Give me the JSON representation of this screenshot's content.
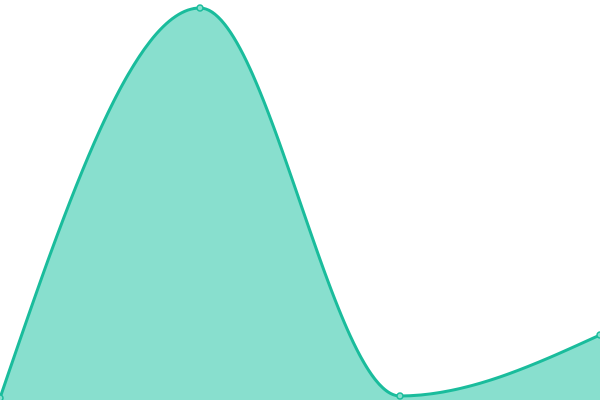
{
  "chart_data": {
    "type": "area",
    "x": [
      0,
      1,
      2,
      3
    ],
    "series": [
      {
        "values": [
          0.5,
          98,
          1,
          16.25
        ]
      }
    ],
    "xlim": [
      0,
      3
    ],
    "ylim": [
      0,
      100
    ],
    "grid": false,
    "axes_visible": false,
    "curve": "smooth-monotone",
    "colors": {
      "line": "#1abc9c",
      "fill": "#88dfce"
    }
  }
}
